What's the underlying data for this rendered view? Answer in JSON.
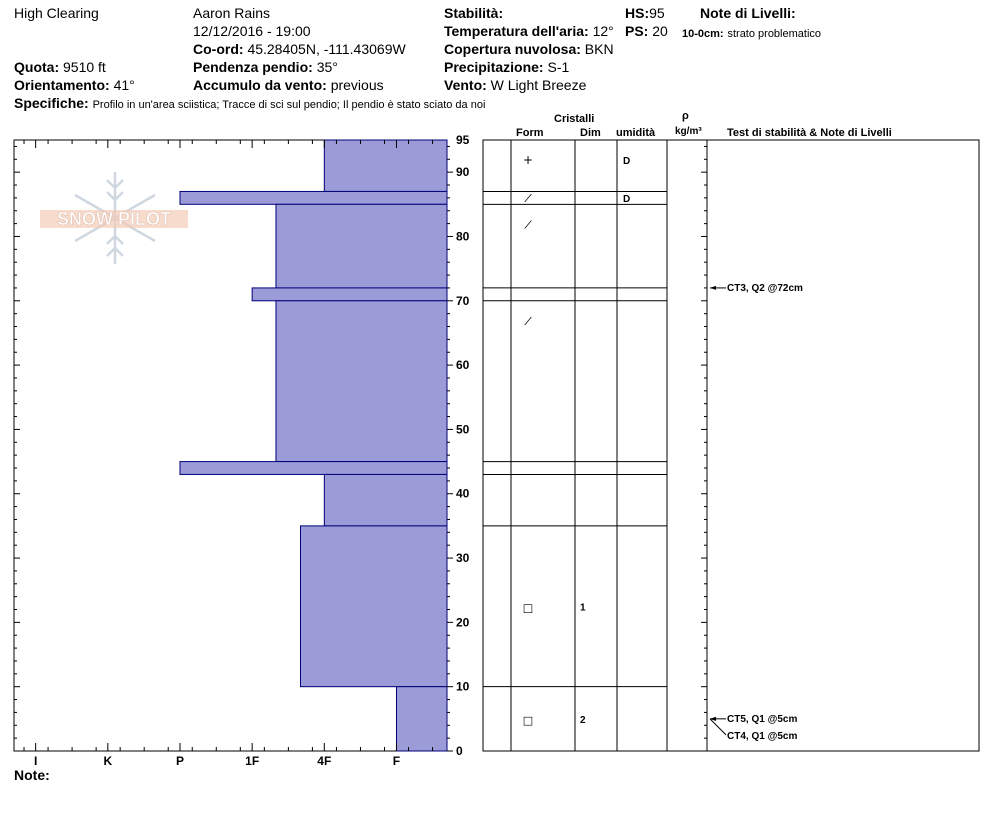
{
  "header": {
    "location": "High Clearing",
    "observer": "Aaron Rains",
    "datetime": "12/12/2016 - 19:00",
    "coord_label": "Co-ord:",
    "coord_value": "45.28405N, -111.43069W",
    "elevation_label": "Quota:",
    "elevation_value": "9510 ft",
    "aspect_label": "Orientamento:",
    "aspect_value": "41°",
    "slope_label": "Pendenza pendio:",
    "slope_value": "35°",
    "wind_loading_label": "Accumulo da vento:",
    "wind_loading_value": "previous",
    "stability_label": "Stabilità:",
    "air_temp_label": "Temperatura dell'aria:",
    "air_temp_value": "12°",
    "sky_label": "Copertura nuvolosa:",
    "sky_value": "BKN",
    "precip_label": "Precipitazione:",
    "precip_value": "S-1",
    "wind_label": "Vento:",
    "wind_value": "W Light Breeze",
    "hs_label": "HS:",
    "hs_value": "95",
    "ps_label": "PS:",
    "ps_value": "20",
    "layer_notes_label": "Note di Livelli:",
    "layer_note_depth": "10-0cm:",
    "layer_note_text": "strato problematico",
    "specifics_label": "Specifiche:",
    "specifics_text": "Profilo in un'area sciistica; Tracce di sci sul pendio; Il pendio è stato sciato da noi",
    "notes_label": "Note:"
  },
  "columns": {
    "crystals": "Cristalli",
    "form": "Form",
    "size": "Dim",
    "moisture": "umidità",
    "rho": "ρ",
    "density_unit": "kg/m³",
    "tests": "Test di stabilità & Note di Livelli"
  },
  "watermark": "SNOW PILOT",
  "colors": {
    "bar_fill": "#9b9bd8",
    "bar_stroke": "#00007a",
    "axis": "#000000"
  },
  "chart_data": {
    "type": "bar",
    "orientation": "horizontal",
    "title": "",
    "xlabel": "",
    "ylabel": "",
    "hardness_scale": [
      "F",
      "4F",
      "1F",
      "P",
      "K",
      "I"
    ],
    "ylim": [
      0,
      95
    ],
    "y_ticks": [
      0,
      10,
      20,
      30,
      40,
      50,
      60,
      70,
      80,
      90,
      95
    ],
    "layers": [
      {
        "top": 95,
        "bottom": 87,
        "hardness": "4F"
      },
      {
        "top": 87,
        "bottom": 85,
        "hardness": "P"
      },
      {
        "top": 85,
        "bottom": 72,
        "hardness": "1F-"
      },
      {
        "top": 72,
        "bottom": 70,
        "hardness": "1F"
      },
      {
        "top": 70,
        "bottom": 45,
        "hardness": "1F-"
      },
      {
        "top": 45,
        "bottom": 43,
        "hardness": "P"
      },
      {
        "top": 43,
        "bottom": 35,
        "hardness": "4F"
      },
      {
        "top": 35,
        "bottom": 10,
        "hardness": "4F+"
      },
      {
        "top": 10,
        "bottom": 0,
        "hardness": "F"
      }
    ],
    "hardness_values": {
      "F": 1,
      "4F": 2,
      "4F+": 2.33,
      "1F-": 2.67,
      "1F": 3,
      "P": 4,
      "K": 5,
      "I": 6
    },
    "grain_rows": [
      {
        "top": 95,
        "bottom": 87,
        "form": "+",
        "size": "",
        "moisture": "D"
      },
      {
        "top": 87,
        "bottom": 85,
        "form": "/",
        "size": "",
        "moisture": "D"
      },
      {
        "top": 85,
        "bottom": 72,
        "form": "/",
        "size": "",
        "moisture": ""
      },
      {
        "top": 72,
        "bottom": 70,
        "form": "",
        "size": "",
        "moisture": ""
      },
      {
        "top": 70,
        "bottom": 45,
        "form": "/",
        "size": "",
        "moisture": ""
      },
      {
        "top": 45,
        "bottom": 43,
        "form": "",
        "size": "",
        "moisture": ""
      },
      {
        "top": 43,
        "bottom": 35,
        "form": "",
        "size": "",
        "moisture": ""
      },
      {
        "top": 35,
        "bottom": 10,
        "form": "□",
        "size": "1",
        "moisture": ""
      },
      {
        "top": 10,
        "bottom": 0,
        "form": "□",
        "size": "2",
        "moisture": ""
      }
    ],
    "stability_tests": [
      {
        "label": "CT3, Q2 @72cm",
        "depth": 72
      },
      {
        "label": "CT5, Q1 @5cm",
        "depth": 5
      },
      {
        "label": "CT4, Q1 @5cm",
        "depth": 5
      }
    ]
  }
}
